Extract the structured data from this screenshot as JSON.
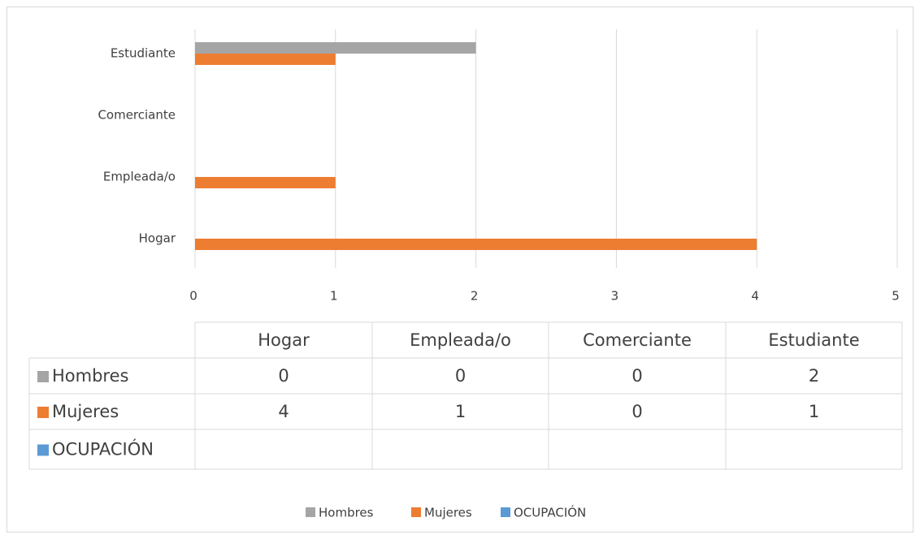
{
  "chart_data": {
    "type": "bar",
    "orientation": "horizontal",
    "categories": [
      "Hogar",
      "Empleada/o",
      "Comerciante",
      "Estudiante"
    ],
    "series": [
      {
        "name": "Hombres",
        "color": "#a5a5a5",
        "values": [
          0,
          0,
          0,
          2
        ]
      },
      {
        "name": "Mujeres",
        "color": "#ed7d31",
        "values": [
          4,
          1,
          0,
          1
        ]
      },
      {
        "name": "OCUPACIÓN",
        "color": "#5b9bd5",
        "values": [
          null,
          null,
          null,
          null
        ]
      }
    ],
    "xlim": [
      0,
      5
    ],
    "xticks": [
      0,
      1,
      2,
      3,
      4,
      5
    ],
    "grid": true,
    "data_table": true,
    "legend": "bottom"
  }
}
